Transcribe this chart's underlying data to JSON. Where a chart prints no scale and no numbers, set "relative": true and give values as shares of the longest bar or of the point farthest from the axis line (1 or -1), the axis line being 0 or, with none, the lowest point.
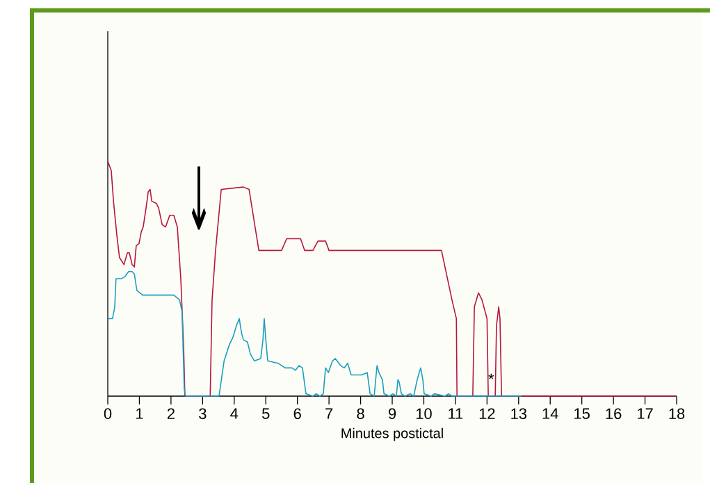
{
  "chart_data": {
    "type": "line",
    "relative": true,
    "xlabel": "Minutes postictal",
    "xlim": [
      0,
      18
    ],
    "xticks": [
      0,
      1,
      2,
      3,
      4,
      5,
      6,
      7,
      8,
      9,
      10,
      11,
      12,
      13,
      14,
      15,
      16,
      17,
      18
    ],
    "tick_labels": "x",
    "grid": false,
    "marker": "none",
    "line_style": "solid",
    "annotations": [
      "↓",
      {
        "text": "*",
        "x": 12.13,
        "y": 0.05
      }
    ],
    "series": [
      {
        "color": "#b5173f",
        "x": [
          0,
          0.11,
          0.18,
          0.29,
          0.37,
          0.51,
          0.62,
          0.68,
          0.77,
          0.84,
          0.9,
          0.99,
          1.06,
          1.12,
          1.21,
          1.28,
          1.34,
          1.39,
          1.54,
          1.61,
          1.72,
          1.83,
          1.96,
          2.09,
          2.2,
          2.31,
          2.4,
          2.44,
          2.97,
          3.24,
          3.3,
          3.41,
          3.59,
          4.29,
          4.47,
          4.78,
          5.28,
          5.5,
          5.66,
          5.94,
          6.1,
          6.23,
          6.49,
          6.65,
          6.89,
          7.0,
          7.15,
          10.56,
          10.67,
          10.89,
          11.03,
          11.05,
          11.55,
          11.6,
          11.73,
          11.84,
          12.0,
          12.04,
          12.26,
          12.3,
          12.37,
          12.41,
          12.46,
          18
        ],
        "values": [
          1,
          0.96,
          0.83,
          0.68,
          0.59,
          0.56,
          0.61,
          0.61,
          0.56,
          0.55,
          0.64,
          0.65,
          0.7,
          0.72,
          0.8,
          0.87,
          0.88,
          0.83,
          0.82,
          0.8,
          0.73,
          0.72,
          0.77,
          0.77,
          0.72,
          0.5,
          0.21,
          0,
          0,
          0,
          0.41,
          0.62,
          0.88,
          0.89,
          0.88,
          0.62,
          0.62,
          0.62,
          0.67,
          0.67,
          0.67,
          0.62,
          0.62,
          0.66,
          0.66,
          0.62,
          0.62,
          0.62,
          0.55,
          0.41,
          0.33,
          0,
          0,
          0.38,
          0.44,
          0.41,
          0.33,
          0,
          0,
          0.3,
          0.38,
          0.33,
          0,
          0
        ]
      },
      {
        "color": "#1a9fbf",
        "x": [
          0,
          0.15,
          0.22,
          0.26,
          0.44,
          0.55,
          0.66,
          0.77,
          0.84,
          0.92,
          1.1,
          2.09,
          2.27,
          2.35,
          2.42,
          2.46,
          2.75,
          2.97,
          3.52,
          3.68,
          3.85,
          3.96,
          4.07,
          4.16,
          4.23,
          4.29,
          4.42,
          4.51,
          4.64,
          4.84,
          4.91,
          4.95,
          5.0,
          5.06,
          5.39,
          5.61,
          5.83,
          5.94,
          6.05,
          6.16,
          6.27,
          6.49,
          6.6,
          6.71,
          6.82,
          6.89,
          6.98,
          7.11,
          7.2,
          7.37,
          7.48,
          7.59,
          7.7,
          8.03,
          8.21,
          8.3,
          8.43,
          8.47,
          8.52,
          8.58,
          8.69,
          8.74,
          8.91,
          9.02,
          9.13,
          9.18,
          9.22,
          9.29,
          9.4,
          9.57,
          9.68,
          9.79,
          9.9,
          9.97,
          10.01,
          10.23,
          10.34,
          10.67,
          10.78,
          10.89,
          11.11,
          13.09
        ],
        "values": [
          0.33,
          0.33,
          0.38,
          0.5,
          0.5,
          0.51,
          0.53,
          0.53,
          0.52,
          0.45,
          0.43,
          0.43,
          0.41,
          0.36,
          0.03,
          0,
          0,
          0,
          0,
          0.15,
          0.22,
          0.25,
          0.3,
          0.33,
          0.27,
          0.24,
          0.23,
          0.18,
          0.15,
          0.16,
          0.24,
          0.33,
          0.24,
          0.15,
          0.14,
          0.12,
          0.12,
          0.11,
          0.13,
          0.12,
          0.01,
          0,
          0.01,
          0,
          0.01,
          0.12,
          0.1,
          0.15,
          0.16,
          0.13,
          0.12,
          0.14,
          0.09,
          0.09,
          0.1,
          0.01,
          0,
          0.06,
          0.13,
          0.1,
          0.07,
          0.01,
          0,
          0.01,
          0,
          0.07,
          0.06,
          0.01,
          0,
          0.01,
          0,
          0.07,
          0.12,
          0.07,
          0.01,
          0,
          0.01,
          0,
          0.01,
          0,
          0,
          0
        ]
      }
    ]
  }
}
